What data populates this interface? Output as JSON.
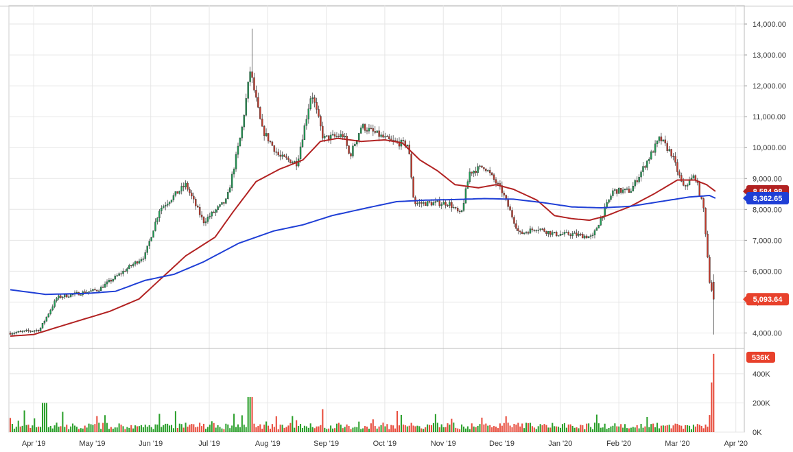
{
  "colors": {
    "up": "#1f9d55",
    "down": "#c0392b",
    "ma_short": "#b22222",
    "ma_long": "#1f3fd6",
    "grid": "#e6e6e6",
    "axis_text": "#333333",
    "vol_up": "#2ca02c",
    "vol_down": "#e74c3c",
    "tag_red": "#e8412c",
    "tag_blue": "#1f3fd6"
  },
  "chart_data": {
    "type": "candlestick",
    "x_labels": [
      "Apr '19",
      "May '19",
      "Jun '19",
      "Jul '19",
      "Aug '19",
      "Sep '19",
      "Oct '19",
      "Nov '19",
      "Dec '19",
      "Jan '20",
      "Feb '20",
      "Mar '20",
      "Apr '20"
    ],
    "y_ticks": [
      "4,000.00",
      "5,000.00",
      "6,000.00",
      "7,000.00",
      "8,000.00",
      "9,000.00",
      "10,000.00",
      "11,000.00",
      "12,000.00",
      "13,000.00",
      "14,000.00"
    ],
    "ylim": [
      3500,
      14600
    ],
    "volume_ticks": [
      "0K",
      "200K",
      "400K"
    ],
    "volume_ylim": [
      0,
      540
    ],
    "price_tags": {
      "last_price": "5,093.64",
      "ma_short": "8,584.98",
      "ma_long": "8,362.65",
      "last_volume": "536K"
    },
    "price_anchors": [
      {
        "m": 0,
        "c": 4000
      },
      {
        "m": 0.5,
        "c": 4100
      },
      {
        "m": 0.8,
        "c": 5150
      },
      {
        "m": 1.5,
        "c": 5400
      },
      {
        "m": 2.3,
        "c": 6500
      },
      {
        "m": 2.55,
        "c": 8000
      },
      {
        "m": 3.0,
        "c": 8800
      },
      {
        "m": 3.3,
        "c": 7600
      },
      {
        "m": 3.7,
        "c": 8300
      },
      {
        "m": 3.95,
        "c": 10500
      },
      {
        "m": 4.1,
        "c": 12500
      },
      {
        "m": 4.3,
        "c": 10600
      },
      {
        "m": 4.6,
        "c": 9700
      },
      {
        "m": 4.9,
        "c": 9500
      },
      {
        "m": 5.15,
        "c": 11800
      },
      {
        "m": 5.35,
        "c": 10300
      },
      {
        "m": 5.7,
        "c": 10400
      },
      {
        "m": 5.8,
        "c": 9700
      },
      {
        "m": 6.0,
        "c": 10700
      },
      {
        "m": 6.5,
        "c": 10200
      },
      {
        "m": 6.8,
        "c": 10100
      },
      {
        "m": 6.9,
        "c": 8200
      },
      {
        "m": 7.5,
        "c": 8200
      },
      {
        "m": 7.7,
        "c": 7800
      },
      {
        "m": 7.85,
        "c": 9200
      },
      {
        "m": 8.1,
        "c": 9400
      },
      {
        "m": 8.4,
        "c": 8600
      },
      {
        "m": 8.7,
        "c": 7200
      },
      {
        "m": 9.0,
        "c": 7400
      },
      {
        "m": 9.3,
        "c": 7200
      },
      {
        "m": 9.6,
        "c": 7200
      },
      {
        "m": 9.95,
        "c": 7100
      },
      {
        "m": 10.3,
        "c": 8600
      },
      {
        "m": 10.6,
        "c": 8600
      },
      {
        "m": 11.1,
        "c": 10300
      },
      {
        "m": 11.3,
        "c": 9800
      },
      {
        "m": 11.5,
        "c": 8700
      },
      {
        "m": 11.7,
        "c": 9100
      },
      {
        "m": 11.85,
        "c": 8000
      },
      {
        "m": 11.95,
        "c": 5700
      },
      {
        "m": 12.02,
        "c": 5094
      }
    ],
    "ma_short_anchors": [
      {
        "m": 0,
        "c": 3900
      },
      {
        "m": 0.4,
        "c": 3950
      },
      {
        "m": 1.0,
        "c": 4300
      },
      {
        "m": 1.7,
        "c": 4700
      },
      {
        "m": 2.2,
        "c": 5100
      },
      {
        "m": 2.6,
        "c": 5800
      },
      {
        "m": 3.0,
        "c": 6500
      },
      {
        "m": 3.5,
        "c": 7100
      },
      {
        "m": 3.8,
        "c": 7900
      },
      {
        "m": 4.2,
        "c": 8900
      },
      {
        "m": 4.6,
        "c": 9300
      },
      {
        "m": 5.0,
        "c": 9600
      },
      {
        "m": 5.3,
        "c": 10200
      },
      {
        "m": 5.6,
        "c": 10300
      },
      {
        "m": 6.0,
        "c": 10200
      },
      {
        "m": 6.4,
        "c": 10250
      },
      {
        "m": 6.7,
        "c": 10150
      },
      {
        "m": 7.0,
        "c": 9600
      },
      {
        "m": 7.3,
        "c": 9250
      },
      {
        "m": 7.6,
        "c": 8800
      },
      {
        "m": 8.0,
        "c": 8700
      },
      {
        "m": 8.3,
        "c": 8800
      },
      {
        "m": 8.6,
        "c": 8650
      },
      {
        "m": 9.0,
        "c": 8300
      },
      {
        "m": 9.3,
        "c": 7800
      },
      {
        "m": 9.6,
        "c": 7700
      },
      {
        "m": 9.9,
        "c": 7650
      },
      {
        "m": 10.2,
        "c": 7800
      },
      {
        "m": 10.6,
        "c": 8100
      },
      {
        "m": 11.0,
        "c": 8500
      },
      {
        "m": 11.4,
        "c": 8950
      },
      {
        "m": 11.7,
        "c": 8950
      },
      {
        "m": 11.9,
        "c": 8800
      },
      {
        "m": 12.05,
        "c": 8585
      }
    ],
    "ma_long_anchors": [
      {
        "m": 0,
        "c": 5400
      },
      {
        "m": 0.6,
        "c": 5250
      },
      {
        "m": 1.3,
        "c": 5280
      },
      {
        "m": 1.8,
        "c": 5350
      },
      {
        "m": 2.3,
        "c": 5700
      },
      {
        "m": 2.8,
        "c": 5900
      },
      {
        "m": 3.3,
        "c": 6300
      },
      {
        "m": 3.9,
        "c": 6900
      },
      {
        "m": 4.5,
        "c": 7300
      },
      {
        "m": 5.0,
        "c": 7500
      },
      {
        "m": 5.5,
        "c": 7800
      },
      {
        "m": 6.1,
        "c": 8050
      },
      {
        "m": 6.6,
        "c": 8250
      },
      {
        "m": 7.1,
        "c": 8300
      },
      {
        "m": 7.6,
        "c": 8320
      },
      {
        "m": 8.1,
        "c": 8350
      },
      {
        "m": 8.6,
        "c": 8330
      },
      {
        "m": 9.1,
        "c": 8220
      },
      {
        "m": 9.6,
        "c": 8080
      },
      {
        "m": 10.1,
        "c": 8050
      },
      {
        "m": 10.6,
        "c": 8100
      },
      {
        "m": 11.1,
        "c": 8250
      },
      {
        "m": 11.6,
        "c": 8400
      },
      {
        "m": 11.95,
        "c": 8450
      },
      {
        "m": 12.05,
        "c": 8363
      }
    ]
  }
}
